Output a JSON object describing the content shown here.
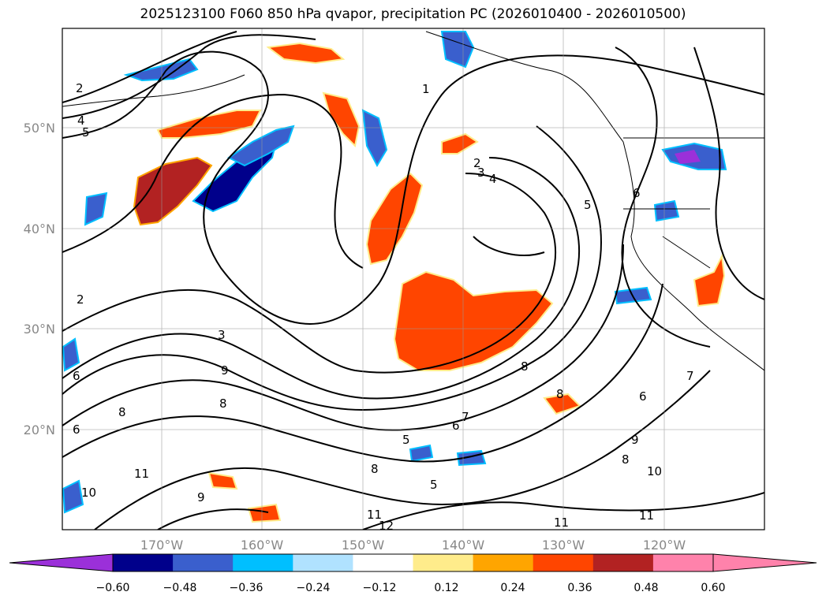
{
  "title": "2025123100 F060 850 hPa qvapor, precipitation PC (2026010400 - 2026010500)",
  "map": {
    "lat_ticks": [
      "50°N",
      "40°N",
      "30°N",
      "20°N"
    ],
    "lon_ticks": [
      "170°W",
      "160°W",
      "150°W",
      "140°W",
      "130°W",
      "120°W"
    ],
    "grid": true,
    "contour_labels": [
      "2",
      "4",
      "5",
      "1",
      "2",
      "3",
      "4",
      "5",
      "6",
      "2",
      "3",
      "6",
      "9",
      "8",
      "8",
      "7",
      "6",
      "5",
      "8",
      "8",
      "9",
      "8",
      "10",
      "11",
      "10",
      "9",
      "11",
      "12",
      "11",
      "11",
      "7",
      "6",
      "8",
      "5",
      "6"
    ]
  },
  "colorbar": {
    "ticks": [
      "−0.60",
      "−0.48",
      "−0.36",
      "−0.24",
      "−0.12",
      "0.12",
      "0.24",
      "0.36",
      "0.48",
      "0.60"
    ],
    "colors": [
      "#9b30d9",
      "#00008b",
      "#3a5fcd",
      "#00bfff",
      "#b0e2ff",
      "#ffffff",
      "#ffec8b",
      "#ffa500",
      "#ff4500",
      "#b22222",
      "#ff82ab",
      "#ff82ab"
    ],
    "under_color": "#9b30d9",
    "over_color": "#ff82ab"
  }
}
